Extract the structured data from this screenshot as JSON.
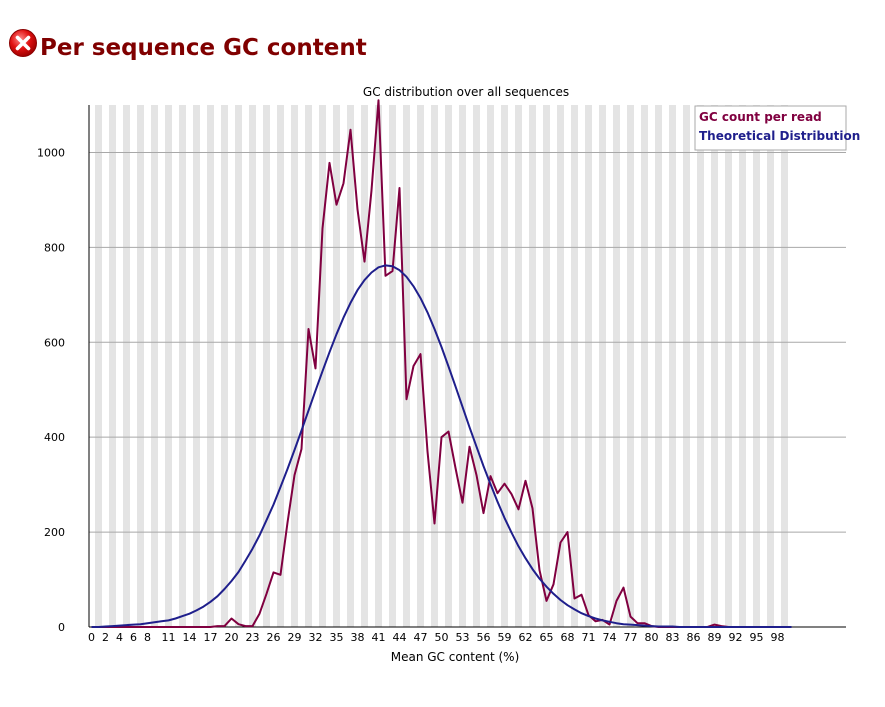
{
  "header": {
    "title": "Per sequence GC content",
    "status_icon": "fail-error-icon",
    "status_color": "#cc0000"
  },
  "chart_data": {
    "type": "line",
    "title": "GC distribution over all sequences",
    "xlabel": "Mean GC content (%)",
    "ylabel": "",
    "xlim": [
      0,
      100
    ],
    "ylim": [
      0,
      1100
    ],
    "x_ticks": [
      0,
      2,
      4,
      6,
      8,
      11,
      14,
      17,
      20,
      23,
      26,
      29,
      32,
      35,
      38,
      41,
      44,
      47,
      50,
      53,
      56,
      59,
      62,
      65,
      68,
      71,
      74,
      77,
      80,
      83,
      86,
      89,
      92,
      95,
      98
    ],
    "y_ticks": [
      0,
      200,
      400,
      600,
      800,
      1000
    ],
    "grid": true,
    "legend_position": "top-right",
    "series": [
      {
        "name": "GC count per read",
        "color": "#800040",
        "x": [
          0,
          1,
          2,
          3,
          4,
          5,
          6,
          7,
          8,
          9,
          10,
          11,
          12,
          13,
          14,
          15,
          16,
          17,
          18,
          19,
          20,
          21,
          22,
          23,
          24,
          25,
          26,
          27,
          28,
          29,
          30,
          31,
          32,
          33,
          34,
          35,
          36,
          37,
          38,
          39,
          40,
          41,
          42,
          43,
          44,
          45,
          46,
          47,
          48,
          49,
          50,
          51,
          52,
          53,
          54,
          55,
          56,
          57,
          58,
          59,
          60,
          61,
          62,
          63,
          64,
          65,
          66,
          67,
          68,
          69,
          70,
          71,
          72,
          73,
          74,
          75,
          76,
          77,
          78,
          79,
          80,
          81,
          82,
          83,
          84,
          85,
          86,
          87,
          88,
          89,
          90,
          91,
          92,
          93,
          94,
          95,
          96,
          97,
          98,
          99,
          100
        ],
        "values": [
          0,
          0,
          0,
          0,
          0,
          0,
          0,
          0,
          0,
          0,
          0,
          0,
          0,
          0,
          0,
          0,
          0,
          0,
          2,
          2,
          18,
          6,
          2,
          2,
          28,
          70,
          115,
          110,
          220,
          320,
          375,
          628,
          545,
          840,
          978,
          890,
          935,
          1048,
          880,
          770,
          920,
          1110,
          740,
          750,
          925,
          480,
          550,
          575,
          370,
          218,
          400,
          412,
          335,
          262,
          380,
          320,
          240,
          318,
          282,
          302,
          280,
          248,
          308,
          250,
          120,
          55,
          90,
          178,
          200,
          60,
          68,
          25,
          12,
          15,
          5,
          55,
          83,
          22,
          8,
          8,
          2,
          0,
          0,
          0,
          0,
          0,
          0,
          0,
          0,
          5,
          2,
          0,
          0,
          0,
          0,
          0,
          0,
          0,
          0,
          0,
          0
        ]
      },
      {
        "name": "Theoretical Distribution",
        "color": "#1f1f8c",
        "x": [
          0,
          1,
          2,
          3,
          4,
          5,
          6,
          7,
          8,
          9,
          10,
          11,
          12,
          13,
          14,
          15,
          16,
          17,
          18,
          19,
          20,
          21,
          22,
          23,
          24,
          25,
          26,
          27,
          28,
          29,
          30,
          31,
          32,
          33,
          34,
          35,
          36,
          37,
          38,
          39,
          40,
          41,
          42,
          43,
          44,
          45,
          46,
          47,
          48,
          49,
          50,
          51,
          52,
          53,
          54,
          55,
          56,
          57,
          58,
          59,
          60,
          61,
          62,
          63,
          64,
          65,
          66,
          67,
          68,
          69,
          70,
          71,
          72,
          73,
          74,
          75,
          76,
          77,
          78,
          79,
          80,
          81,
          82,
          83,
          84,
          85,
          86,
          87,
          88,
          89,
          90,
          91,
          92,
          93,
          94,
          95,
          96,
          97,
          98,
          99,
          100
        ],
        "values": [
          0,
          0,
          1,
          2,
          3,
          4,
          5,
          6,
          8,
          10,
          12,
          14,
          18,
          23,
          28,
          35,
          43,
          53,
          65,
          80,
          97,
          116,
          140,
          165,
          193,
          225,
          258,
          295,
          333,
          373,
          414,
          456,
          498,
          539,
          579,
          617,
          652,
          683,
          710,
          731,
          747,
          758,
          762,
          760,
          752,
          738,
          718,
          693,
          663,
          628,
          590,
          549,
          507,
          464,
          421,
          380,
          339,
          301,
          264,
          230,
          199,
          170,
          145,
          122,
          102,
          85,
          70,
          57,
          46,
          37,
          29,
          23,
          18,
          14,
          11,
          8,
          6,
          5,
          4,
          3,
          2,
          1,
          1,
          1,
          0,
          0,
          0,
          0,
          0,
          0,
          0,
          0,
          0,
          0,
          0,
          0,
          0,
          0,
          0,
          0,
          0
        ]
      }
    ]
  }
}
